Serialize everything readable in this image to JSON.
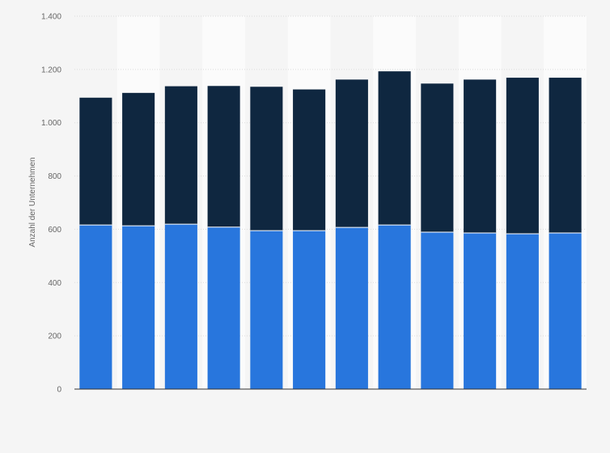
{
  "chart_data": {
    "type": "bar",
    "stacked": true,
    "title": "",
    "xlabel": "",
    "ylabel": "Anzahl der Unternehmen",
    "ylim": [
      0,
      1400
    ],
    "yticks": [
      0,
      200,
      400,
      600,
      800,
      1000,
      1200,
      1400
    ],
    "ytick_labels": [
      "0",
      "200",
      "400",
      "600",
      "800",
      "1.000",
      "1.200",
      "1.400"
    ],
    "categories": [
      "",
      "",
      "",
      "",
      "",
      "",
      "",
      "",
      "",
      "",
      "",
      ""
    ],
    "series": [
      {
        "values": [
          616,
          613,
          619,
          608,
          595,
          595,
          607,
          616,
          589,
          586,
          583,
          586
        ],
        "color": "#2876dd"
      },
      {
        "values": [
          478,
          499,
          518,
          530,
          540,
          530,
          555,
          577,
          558,
          576,
          586,
          583
        ],
        "color": "#0f2740"
      }
    ],
    "grid": true,
    "legend": "none"
  }
}
